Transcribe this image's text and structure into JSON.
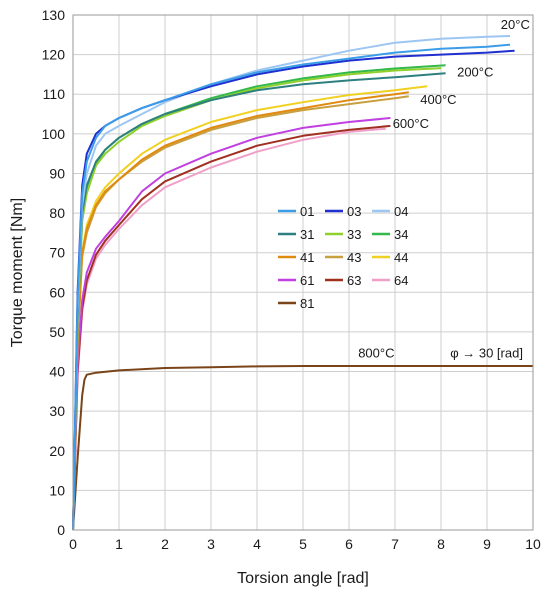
{
  "chart_data": {
    "type": "line",
    "xlabel": "Torsion angle  [rad]",
    "ylabel": "Torque moment  [Nm]",
    "xlim": [
      0,
      10
    ],
    "ylim": [
      0,
      130
    ],
    "xticks": [
      0,
      1,
      2,
      3,
      4,
      5,
      6,
      7,
      8,
      9,
      10
    ],
    "yticks": [
      0,
      10,
      20,
      30,
      40,
      50,
      60,
      70,
      80,
      90,
      100,
      110,
      120,
      130
    ],
    "grid": true,
    "legend_position": "center-right",
    "annotations": [
      {
        "text": "20°C",
        "x": 9.3,
        "y": 126.5
      },
      {
        "text": "200°C",
        "x": 8.35,
        "y": 114.5
      },
      {
        "text": "400°C",
        "x": 7.55,
        "y": 107.5
      },
      {
        "text": "600°C",
        "x": 6.95,
        "y": 101.5
      },
      {
        "text": "800°C",
        "x": 6.2,
        "y": 43.5
      },
      {
        "text": "φ → 30 [rad]",
        "x": 8.2,
        "y": 43.5
      }
    ],
    "series": [
      {
        "name": "01",
        "color": "#3b9de8",
        "x": [
          0,
          0.1,
          0.2,
          0.3,
          0.5,
          0.7,
          1,
          1.5,
          2,
          3,
          4,
          5,
          6,
          7,
          8,
          9,
          9.5
        ],
        "y": [
          0,
          58,
          85,
          93,
          99,
          102,
          104,
          106.5,
          108.5,
          112.5,
          115.5,
          117.5,
          119,
          120.5,
          121.5,
          122,
          122.5
        ]
      },
      {
        "name": "03",
        "color": "#1f2fd0",
        "x": [
          0,
          0.1,
          0.2,
          0.3,
          0.5,
          0.7,
          1,
          1.5,
          2,
          3,
          4,
          5,
          6,
          7,
          8,
          9,
          9.6
        ],
        "y": [
          0,
          60,
          87,
          95,
          100,
          102,
          104,
          106.5,
          108.5,
          112,
          115,
          117,
          118.5,
          119.5,
          120,
          120.5,
          121
        ]
      },
      {
        "name": "04",
        "color": "#9ec6f2",
        "x": [
          0,
          0.1,
          0.2,
          0.3,
          0.5,
          0.7,
          1,
          1.5,
          2,
          3,
          4,
          5,
          6,
          7,
          8,
          9,
          9.5
        ],
        "y": [
          0,
          55,
          82,
          90,
          97,
          100,
          102,
          105,
          108,
          112.5,
          116,
          118.5,
          121,
          123,
          124,
          124.5,
          124.7
        ]
      },
      {
        "name": "31",
        "color": "#2e8080",
        "x": [
          0,
          0.1,
          0.2,
          0.3,
          0.5,
          0.7,
          1,
          1.5,
          2,
          3,
          4,
          5,
          6,
          7,
          8.1
        ],
        "y": [
          0,
          54,
          80,
          87,
          93,
          96,
          99,
          102.5,
          105,
          108.5,
          111,
          112.5,
          113.5,
          114.3,
          115.3
        ]
      },
      {
        "name": "33",
        "color": "#8fd02c",
        "x": [
          0,
          0.1,
          0.2,
          0.3,
          0.5,
          0.7,
          1,
          1.5,
          2,
          3,
          4,
          5,
          6,
          7,
          8
        ],
        "y": [
          0,
          52,
          78,
          85,
          92,
          95,
          98,
          102,
          104.5,
          108.5,
          111.5,
          113.5,
          115,
          116,
          116.6
        ]
      },
      {
        "name": "34",
        "color": "#33b84a",
        "x": [
          0,
          0.1,
          0.2,
          0.3,
          0.5,
          0.7,
          1,
          1.5,
          2,
          3,
          4,
          5,
          6,
          7,
          8.1
        ],
        "y": [
          0,
          53,
          79,
          86,
          92.5,
          96,
          99,
          102.5,
          105,
          109,
          112,
          114,
          115.5,
          116.5,
          117.3
        ]
      },
      {
        "name": "41",
        "color": "#e08a10",
        "x": [
          0,
          0.1,
          0.2,
          0.3,
          0.5,
          0.7,
          1,
          1.5,
          2,
          3,
          4,
          5,
          6,
          7,
          7.3
        ],
        "y": [
          0,
          48,
          70,
          76,
          82,
          85.5,
          88.5,
          93.5,
          97,
          101.5,
          104.5,
          106.5,
          108.5,
          110,
          110.5
        ]
      },
      {
        "name": "43",
        "color": "#c8a040",
        "x": [
          0,
          0.1,
          0.2,
          0.3,
          0.5,
          0.7,
          1,
          1.5,
          2,
          3,
          4,
          5,
          6,
          7,
          7.3
        ],
        "y": [
          0,
          47,
          69,
          75,
          81.5,
          85,
          88.5,
          93,
          96.5,
          101,
          104,
          106,
          107.5,
          109,
          109.5
        ]
      },
      {
        "name": "44",
        "color": "#f0d020",
        "x": [
          0,
          0.1,
          0.2,
          0.3,
          0.5,
          0.7,
          1,
          1.5,
          2,
          3,
          4,
          5,
          6,
          7,
          7.7
        ],
        "y": [
          0,
          48,
          70,
          77,
          83,
          86.5,
          90,
          95,
          98.5,
          103,
          106,
          108,
          109.8,
          111,
          112
        ]
      },
      {
        "name": "61",
        "color": "#c040e0",
        "x": [
          0,
          0.1,
          0.2,
          0.3,
          0.5,
          0.7,
          1,
          1.5,
          2,
          3,
          4,
          5,
          6,
          6.9
        ],
        "y": [
          0,
          42,
          58,
          65,
          71,
          74,
          78,
          85.5,
          90,
          95,
          99,
          101.5,
          103,
          104
        ]
      },
      {
        "name": "63",
        "color": "#a03020",
        "x": [
          0,
          0.1,
          0.2,
          0.3,
          0.5,
          0.7,
          1,
          1.5,
          2,
          3,
          4,
          5,
          6,
          6.9
        ],
        "y": [
          0,
          40,
          56,
          63,
          69.5,
          73,
          77,
          83.5,
          88,
          93,
          97,
          99.5,
          101,
          102
        ]
      },
      {
        "name": "64",
        "color": "#f0a0c8",
        "x": [
          0,
          0.1,
          0.2,
          0.3,
          0.5,
          0.7,
          1,
          1.5,
          2,
          3,
          4,
          5,
          6,
          6.8
        ],
        "y": [
          0,
          39,
          55,
          62,
          68.5,
          72,
          76,
          82,
          86.5,
          91.5,
          95.5,
          98.5,
          100.5,
          101.3
        ]
      },
      {
        "name": "81",
        "color": "#7a4418",
        "x": [
          0,
          0.1,
          0.2,
          0.25,
          0.3,
          0.5,
          1,
          2,
          3,
          4,
          5,
          6,
          7,
          8,
          9,
          10
        ],
        "y": [
          0,
          18,
          34,
          38,
          39.2,
          39.7,
          40.3,
          40.9,
          41.1,
          41.3,
          41.4,
          41.4,
          41.4,
          41.4,
          41.4,
          41.4
        ]
      }
    ]
  }
}
